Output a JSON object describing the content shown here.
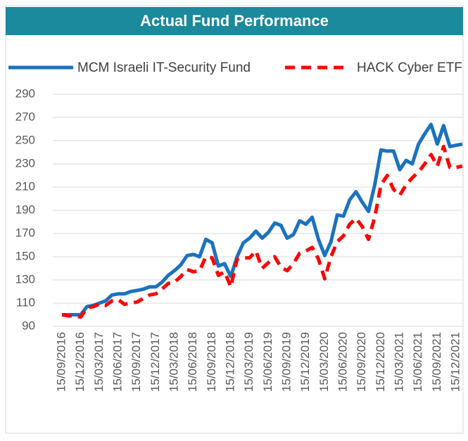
{
  "chart_data": {
    "type": "line",
    "title": "Actual Fund Performance",
    "categories": [
      "15/09/2016",
      null,
      null,
      "15/12/2016",
      null,
      null,
      "15/03/2017",
      null,
      null,
      "15/06/2017",
      null,
      null,
      "15/09/2017",
      null,
      null,
      "15/12/2017",
      null,
      null,
      "15/03/2018",
      null,
      null,
      "15/06/2018",
      null,
      null,
      "15/09/2018",
      null,
      null,
      "15/12/2018",
      null,
      null,
      "15/03/2019",
      null,
      null,
      "15/06/2019",
      null,
      null,
      "15/09/2019",
      null,
      null,
      "15/12/2019",
      null,
      null,
      "15/03/2020",
      null,
      null,
      "15/06/2020",
      null,
      null,
      "15/09/2020",
      null,
      null,
      "15/12/2020",
      null,
      null,
      "15/03/2021",
      null,
      null,
      "15/06/2021",
      null,
      null,
      "15/09/2021",
      null,
      null,
      "15/12/2021",
      null
    ],
    "series": [
      {
        "name": "MCM Israeli IT-Security Fund",
        "color": "#1b72be",
        "dash": false,
        "values": [
          100,
          100,
          100,
          100,
          107,
          108,
          110,
          112,
          117,
          118,
          118,
          120,
          121,
          122,
          124,
          124,
          128,
          134,
          138,
          143,
          151,
          152,
          150,
          165,
          162,
          142,
          144,
          133,
          150,
          162,
          166,
          172,
          166,
          171,
          179,
          177,
          166,
          169,
          181,
          178,
          184,
          165,
          151,
          163,
          186,
          185,
          199,
          206,
          197,
          189,
          212,
          242,
          241,
          241,
          225,
          233,
          230,
          247,
          256,
          264,
          247,
          263,
          245,
          246,
          247
        ]
      },
      {
        "name": "HACK Cyber ETF",
        "color": "#ff0000",
        "dash": true,
        "values": [
          100,
          99,
          99,
          98,
          106,
          107,
          109,
          108,
          112,
          113,
          109,
          110,
          111,
          114,
          117,
          118,
          122,
          127,
          128,
          133,
          139,
          137,
          138,
          150,
          149,
          134,
          137,
          124,
          148,
          149,
          149,
          155,
          140,
          145,
          150,
          141,
          138,
          144,
          153,
          155,
          158,
          148,
          131,
          150,
          163,
          168,
          178,
          183,
          176,
          165,
          184,
          212,
          220,
          208,
          203,
          212,
          218,
          223,
          230,
          238,
          228,
          245,
          227,
          227,
          228
        ]
      }
    ],
    "ylim": [
      90,
      290
    ],
    "yticks": [
      90,
      110,
      130,
      150,
      170,
      190,
      210,
      230,
      250,
      270,
      290
    ],
    "grid": true
  }
}
